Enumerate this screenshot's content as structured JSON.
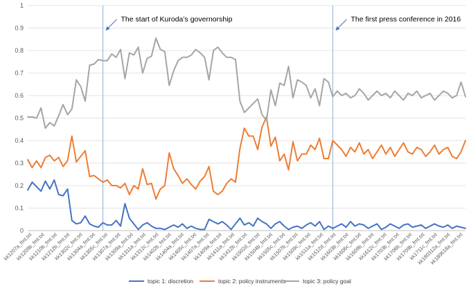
{
  "chart_data": {
    "type": "line",
    "title": "",
    "xlabel": "",
    "ylabel": "",
    "ylim": [
      0,
      1
    ],
    "yticks": [
      0,
      0.1,
      0.2,
      0.3,
      0.4,
      0.5,
      0.6,
      0.7,
      0.8,
      0.9,
      1
    ],
    "grid": "horizontal",
    "legend_position": "bottom",
    "n_points": 100,
    "x_tick_labels": [
      "kk1207a_fmt.txt",
      "kk1209b_fmt.txt",
      "kk1210b_fmt.txt",
      "kk1212b_fmt.txt",
      "kk1302c_fmt.txt",
      "kk1304a_fmt.txt",
      "kk1305c_fmt.txt",
      "kk1307a_fmt.txt",
      "kk1309a_fmt.txt",
      "kk1311a_fmt.txt",
      "kk1312c_fmt.txt",
      "kk1402b_fmt.txt",
      "kk1404a_fmt.txt",
      "kk1405c_fmt.txt",
      "kk1407a_fmt.txt",
      "kk1409a_fmt.txt",
      "kk1411a_fmt.txt",
      "kk1412b_fmt.txt",
      "kk1502d_fmt.txt",
      "kk1504b_fmt.txt",
      "kk1505c_fmt.txt",
      "kk1507b_fmt.txt",
      "kk1509c_fmt.txt",
      "kk1511a_fmt.txt",
      "kk1512d_fmt.txt",
      "kk1603b_fmt.txt",
      "kk1606c_fmt.txt",
      "kk1609b_fmt.txt",
      "kk1612c_fmt.txt",
      "kk1703b_fmt.txt",
      "kk1706b_fmt.txt",
      "kk1709b_fmt.txt",
      "kk1711c_fmt.txt",
      "kk180312a_fmt.txt",
      "kk180618a_fmt.txt"
    ],
    "vlines": [
      {
        "x_index": 17,
        "label": "The start of Kuroda’s governorship"
      },
      {
        "x_index": 69,
        "label": "The first press conference in 2016"
      }
    ],
    "series": [
      {
        "name": "topic 1: discretion",
        "color": "#4472C4",
        "values": [
          0.18,
          0.215,
          0.195,
          0.175,
          0.22,
          0.185,
          0.225,
          0.16,
          0.155,
          0.185,
          0.045,
          0.03,
          0.035,
          0.065,
          0.03,
          0.02,
          0.015,
          0.035,
          0.025,
          0.025,
          0.045,
          0.02,
          0.12,
          0.055,
          0.03,
          0.005,
          0.025,
          0.035,
          0.02,
          0.01,
          0.01,
          0.005,
          0.015,
          0.025,
          0.015,
          0.03,
          0.01,
          0.02,
          0.01,
          0.005,
          0.005,
          0.05,
          0.04,
          0.03,
          0.04,
          0.025,
          0.005,
          0.03,
          0.055,
          0.025,
          0.035,
          0.02,
          0.055,
          0.04,
          0.03,
          0.01,
          0.03,
          0.04,
          0.02,
          0.005,
          0.015,
          0.02,
          0.01,
          0.025,
          0.035,
          0.02,
          0.04,
          0.005,
          0.02,
          0.01,
          0.02,
          0.03,
          0.015,
          0.04,
          0.02,
          0.03,
          0.025,
          0.01,
          0.02,
          0.03,
          0.005,
          0.015,
          0.03,
          0.02,
          0.01,
          0.025,
          0.03,
          0.015,
          0.02,
          0.025,
          0.01,
          0.02,
          0.03,
          0.02,
          0.015,
          0.025,
          0.01,
          0.02,
          0.015,
          0.01
        ]
      },
      {
        "name": "topic 2: policy instruments",
        "color": "#ED7D31",
        "values": [
          0.315,
          0.28,
          0.31,
          0.28,
          0.325,
          0.335,
          0.31,
          0.325,
          0.285,
          0.31,
          0.42,
          0.305,
          0.33,
          0.355,
          0.24,
          0.245,
          0.23,
          0.215,
          0.225,
          0.2,
          0.2,
          0.19,
          0.21,
          0.16,
          0.2,
          0.185,
          0.275,
          0.205,
          0.21,
          0.14,
          0.185,
          0.2,
          0.345,
          0.275,
          0.245,
          0.21,
          0.23,
          0.205,
          0.185,
          0.22,
          0.24,
          0.285,
          0.175,
          0.16,
          0.175,
          0.21,
          0.23,
          0.215,
          0.365,
          0.455,
          0.42,
          0.42,
          0.36,
          0.46,
          0.505,
          0.375,
          0.415,
          0.31,
          0.34,
          0.27,
          0.395,
          0.31,
          0.34,
          0.34,
          0.38,
          0.36,
          0.41,
          0.32,
          0.32,
          0.4,
          0.38,
          0.36,
          0.33,
          0.37,
          0.35,
          0.39,
          0.34,
          0.36,
          0.32,
          0.35,
          0.38,
          0.34,
          0.37,
          0.33,
          0.36,
          0.39,
          0.35,
          0.34,
          0.37,
          0.36,
          0.33,
          0.35,
          0.38,
          0.34,
          0.36,
          0.37,
          0.33,
          0.32,
          0.35,
          0.4
        ]
      },
      {
        "name": "topic 3: policy goal",
        "color": "#A5A5A5",
        "values": [
          0.505,
          0.505,
          0.5,
          0.545,
          0.455,
          0.48,
          0.465,
          0.51,
          0.56,
          0.515,
          0.54,
          0.67,
          0.64,
          0.575,
          0.735,
          0.74,
          0.76,
          0.755,
          0.755,
          0.785,
          0.77,
          0.805,
          0.675,
          0.79,
          0.78,
          0.815,
          0.7,
          0.765,
          0.775,
          0.855,
          0.805,
          0.795,
          0.645,
          0.71,
          0.755,
          0.77,
          0.77,
          0.78,
          0.805,
          0.79,
          0.77,
          0.67,
          0.8,
          0.815,
          0.79,
          0.77,
          0.77,
          0.76,
          0.575,
          0.525,
          0.545,
          0.565,
          0.585,
          0.515,
          0.49,
          0.625,
          0.555,
          0.655,
          0.645,
          0.73,
          0.59,
          0.67,
          0.66,
          0.645,
          0.59,
          0.63,
          0.555,
          0.675,
          0.66,
          0.595,
          0.62,
          0.6,
          0.61,
          0.59,
          0.6,
          0.63,
          0.61,
          0.58,
          0.6,
          0.62,
          0.6,
          0.61,
          0.59,
          0.62,
          0.6,
          0.58,
          0.61,
          0.6,
          0.62,
          0.59,
          0.6,
          0.61,
          0.58,
          0.6,
          0.62,
          0.61,
          0.59,
          0.6,
          0.66,
          0.595
        ]
      }
    ]
  }
}
